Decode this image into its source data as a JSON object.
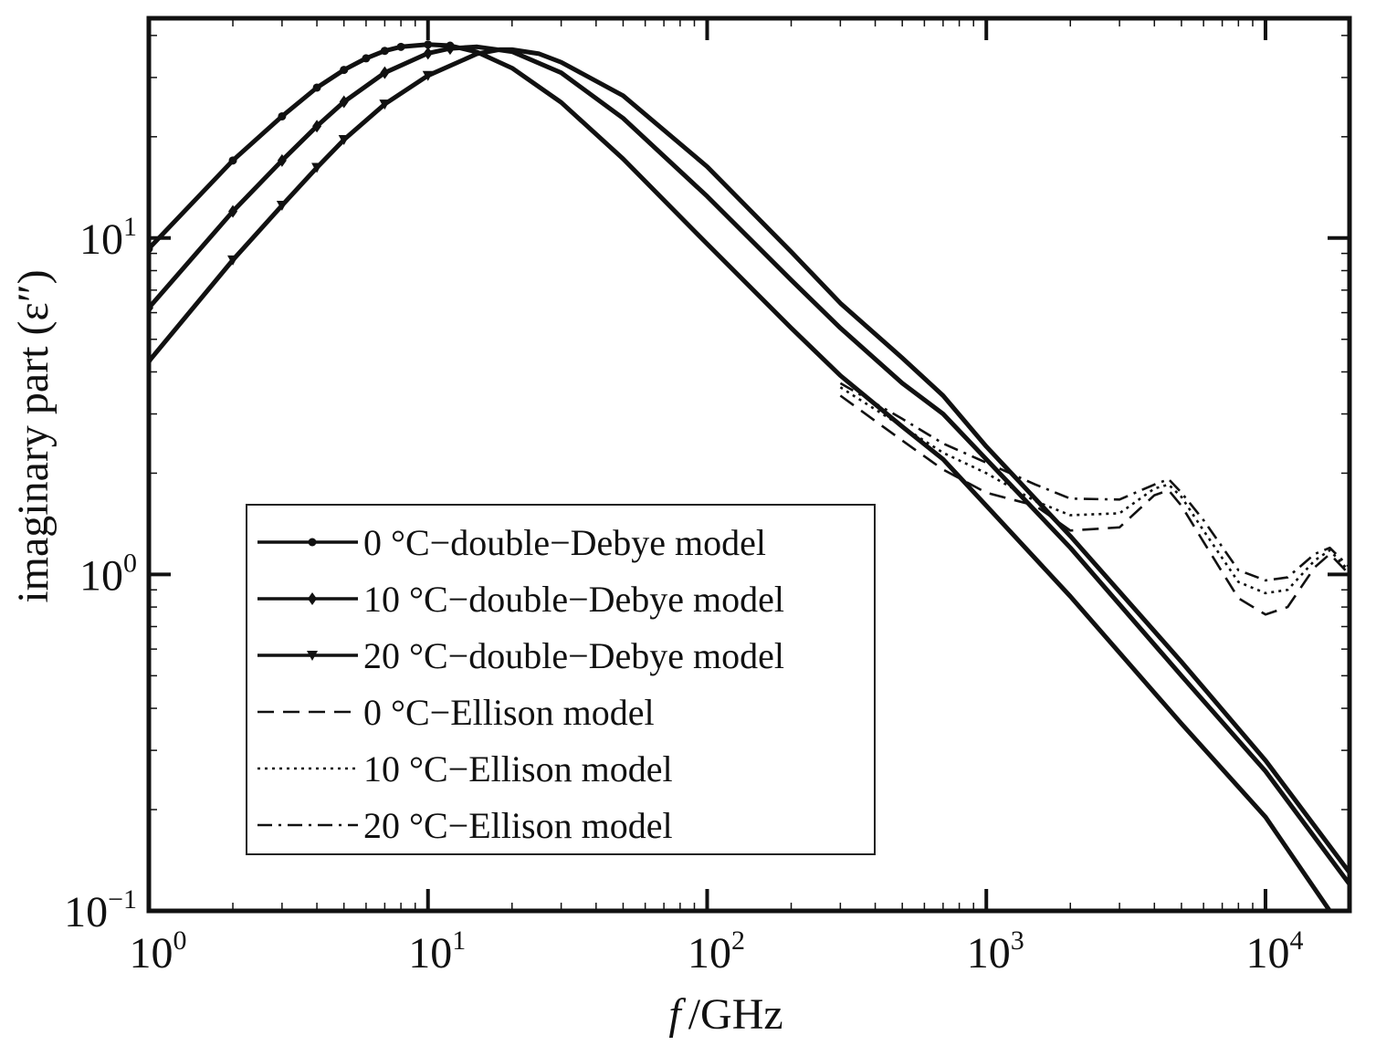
{
  "chart_data": {
    "type": "line",
    "title": "",
    "xlabel": "f /GHz",
    "xlabel_italic_part": "f",
    "xlabel_rest": "/GHz",
    "ylabel": "imaginary part (ε″)",
    "xscale": "log",
    "yscale": "log",
    "xlim": [
      1,
      20000
    ],
    "ylim": [
      0.1,
      45
    ],
    "grid": false,
    "legend_position": "lower-left",
    "x_ticks": [
      {
        "value": 1,
        "base": "10",
        "exp": "0"
      },
      {
        "value": 10,
        "base": "10",
        "exp": "1"
      },
      {
        "value": 100,
        "base": "10",
        "exp": "2"
      },
      {
        "value": 1000,
        "base": "10",
        "exp": "3"
      },
      {
        "value": 10000,
        "base": "10",
        "exp": "4"
      }
    ],
    "y_ticks": [
      {
        "value": 0.1,
        "base": "10",
        "exp": "−1"
      },
      {
        "value": 1,
        "base": "10",
        "exp": "0"
      },
      {
        "value": 10,
        "base": "10",
        "exp": "1"
      }
    ],
    "series": [
      {
        "name": "0 °C−double−Debye model",
        "style": "solid",
        "marker": "circle",
        "points": [
          [
            1,
            9.3
          ],
          [
            2,
            17.0
          ],
          [
            3,
            23.0
          ],
          [
            4,
            28.0
          ],
          [
            5,
            31.6
          ],
          [
            6,
            34.2
          ],
          [
            7,
            36.0
          ],
          [
            8,
            37.0
          ],
          [
            10,
            37.6
          ],
          [
            12,
            37.3
          ],
          [
            15,
            35.7
          ],
          [
            20,
            32.0
          ],
          [
            30,
            25.3
          ],
          [
            50,
            17.2
          ],
          [
            100,
            9.6
          ],
          [
            200,
            5.4
          ],
          [
            300,
            3.9
          ],
          [
            500,
            2.75
          ],
          [
            700,
            2.2
          ],
          [
            1000,
            1.6
          ],
          [
            2000,
            0.86
          ],
          [
            5000,
            0.36
          ],
          [
            10000,
            0.19
          ],
          [
            17000,
            0.1
          ]
        ]
      },
      {
        "name": "10 °C−double−Debye model",
        "style": "solid",
        "marker": "diamond",
        "points": [
          [
            1,
            6.2
          ],
          [
            2,
            12.0
          ],
          [
            3,
            17.0
          ],
          [
            4,
            21.5
          ],
          [
            5,
            25.4
          ],
          [
            7,
            31.0
          ],
          [
            10,
            35.4
          ],
          [
            12,
            36.6
          ],
          [
            15,
            37.0
          ],
          [
            20,
            35.8
          ],
          [
            30,
            31.0
          ],
          [
            50,
            22.7
          ],
          [
            100,
            13.3
          ],
          [
            200,
            7.5
          ],
          [
            300,
            5.4
          ],
          [
            500,
            3.7
          ],
          [
            700,
            3.0
          ],
          [
            1000,
            2.2
          ],
          [
            2000,
            1.2
          ],
          [
            5000,
            0.5
          ],
          [
            10000,
            0.26
          ],
          [
            20000,
            0.12
          ]
        ]
      },
      {
        "name": "20 °C−double−Debye model",
        "style": "solid",
        "marker": "triangle-down",
        "points": [
          [
            1,
            4.3
          ],
          [
            2,
            8.6
          ],
          [
            3,
            12.5
          ],
          [
            4,
            16.2
          ],
          [
            5,
            19.6
          ],
          [
            7,
            25.0
          ],
          [
            10,
            30.4
          ],
          [
            15,
            35.3
          ],
          [
            18,
            36.3
          ],
          [
            20,
            36.3
          ],
          [
            25,
            35.3
          ],
          [
            30,
            33.3
          ],
          [
            50,
            26.5
          ],
          [
            100,
            16.3
          ],
          [
            200,
            9.1
          ],
          [
            300,
            6.4
          ],
          [
            500,
            4.4
          ],
          [
            700,
            3.4
          ],
          [
            1000,
            2.4
          ],
          [
            2000,
            1.3
          ],
          [
            5000,
            0.55
          ],
          [
            10000,
            0.28
          ],
          [
            20000,
            0.13
          ]
        ]
      },
      {
        "name": "0 °C−Ellison model",
        "style": "dashed",
        "marker": "none",
        "points": [
          [
            300,
            3.4
          ],
          [
            500,
            2.5
          ],
          [
            700,
            2.05
          ],
          [
            1000,
            1.75
          ],
          [
            1500,
            1.6
          ],
          [
            2000,
            1.35
          ],
          [
            3000,
            1.38
          ],
          [
            4000,
            1.72
          ],
          [
            4500,
            1.78
          ],
          [
            5000,
            1.6
          ],
          [
            6000,
            1.25
          ],
          [
            8000,
            0.85
          ],
          [
            10000,
            0.76
          ],
          [
            12000,
            0.8
          ],
          [
            15000,
            1.05
          ],
          [
            17000,
            1.15
          ],
          [
            20000,
            1.0
          ]
        ]
      },
      {
        "name": "10 °C−Ellison model",
        "style": "dotted",
        "marker": "none",
        "points": [
          [
            300,
            3.6
          ],
          [
            500,
            2.75
          ],
          [
            700,
            2.3
          ],
          [
            1000,
            2.0
          ],
          [
            1500,
            1.65
          ],
          [
            2000,
            1.5
          ],
          [
            3000,
            1.52
          ],
          [
            4000,
            1.8
          ],
          [
            4500,
            1.85
          ],
          [
            5000,
            1.7
          ],
          [
            6000,
            1.35
          ],
          [
            8000,
            0.95
          ],
          [
            10000,
            0.88
          ],
          [
            12000,
            0.9
          ],
          [
            15000,
            1.1
          ],
          [
            17000,
            1.18
          ],
          [
            20000,
            1.02
          ]
        ]
      },
      {
        "name": "20 °C−Ellison model",
        "style": "dashdot",
        "marker": "none",
        "points": [
          [
            300,
            3.7
          ],
          [
            500,
            2.9
          ],
          [
            700,
            2.45
          ],
          [
            1000,
            2.15
          ],
          [
            1500,
            1.85
          ],
          [
            2000,
            1.68
          ],
          [
            3000,
            1.67
          ],
          [
            4000,
            1.85
          ],
          [
            4500,
            1.92
          ],
          [
            5000,
            1.75
          ],
          [
            6000,
            1.45
          ],
          [
            8000,
            1.03
          ],
          [
            10000,
            0.96
          ],
          [
            12000,
            0.98
          ],
          [
            15000,
            1.15
          ],
          [
            17000,
            1.2
          ],
          [
            20000,
            1.05
          ]
        ]
      }
    ]
  }
}
